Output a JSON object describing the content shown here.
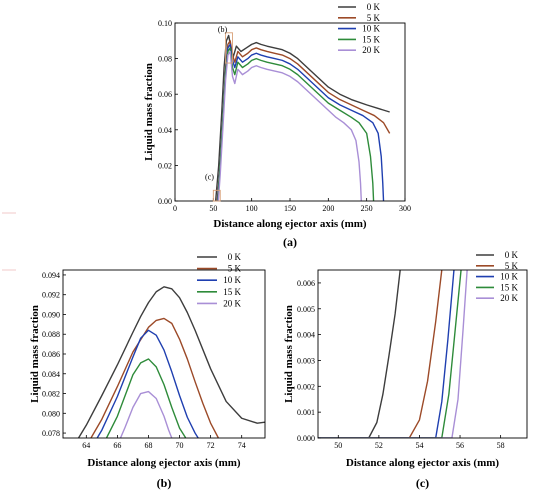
{
  "chart_data": [
    {
      "type": "line",
      "panel_label": "(a)",
      "xlabel": "Distance along ejector axis (mm)",
      "ylabel": "Liquid mass fraction",
      "xlim": [
        0,
        300
      ],
      "ylim": [
        0,
        0.1
      ],
      "x_ticks": [
        "0",
        "50",
        "100",
        "150",
        "200",
        "250",
        "300"
      ],
      "y_ticks": [
        "0.00",
        "0.02",
        "0.04",
        "0.06",
        "0.08",
        "0.10"
      ],
      "annotations": [
        "(b)",
        "(c)"
      ],
      "legend_position": "top-right",
      "series": [
        {
          "name": "0 K",
          "color": "#3d3d3d",
          "x": [
            53,
            57,
            61,
            64,
            67,
            70,
            73,
            76,
            80,
            86,
            93,
            100,
            106,
            112,
            120,
            130,
            140,
            150,
            160,
            170,
            180,
            190,
            200,
            215,
            230,
            250,
            265,
            280
          ],
          "y": [
            0,
            0.02,
            0.05,
            0.075,
            0.09,
            0.093,
            0.086,
            0.081,
            0.087,
            0.084,
            0.086,
            0.088,
            0.089,
            0.088,
            0.087,
            0.086,
            0.085,
            0.083,
            0.08,
            0.076,
            0.072,
            0.068,
            0.064,
            0.06,
            0.057,
            0.054,
            0.052,
            0.05
          ]
        },
        {
          "name": "5 K",
          "color": "#9c4a28",
          "x": [
            55,
            59,
            63,
            66,
            69,
            72,
            75,
            78,
            82,
            88,
            95,
            100,
            106,
            112,
            120,
            130,
            140,
            150,
            160,
            170,
            180,
            190,
            200,
            215,
            230,
            245,
            260,
            272,
            280
          ],
          "y": [
            0,
            0.02,
            0.05,
            0.075,
            0.088,
            0.09,
            0.082,
            0.078,
            0.084,
            0.081,
            0.083,
            0.085,
            0.086,
            0.085,
            0.084,
            0.083,
            0.082,
            0.08,
            0.077,
            0.073,
            0.069,
            0.065,
            0.061,
            0.057,
            0.054,
            0.051,
            0.048,
            0.044,
            0.038
          ]
        },
        {
          "name": "10 K",
          "color": "#1f3fb0",
          "x": [
            55.5,
            59,
            63,
            66,
            69,
            72,
            75,
            78,
            82,
            88,
            95,
            100,
            106,
            112,
            120,
            130,
            140,
            150,
            160,
            170,
            180,
            190,
            200,
            215,
            230,
            245,
            258,
            265,
            269,
            271,
            272
          ],
          "y": [
            0,
            0.02,
            0.05,
            0.073,
            0.086,
            0.088,
            0.079,
            0.075,
            0.081,
            0.078,
            0.08,
            0.082,
            0.083,
            0.082,
            0.081,
            0.08,
            0.079,
            0.077,
            0.074,
            0.07,
            0.066,
            0.062,
            0.058,
            0.054,
            0.051,
            0.048,
            0.044,
            0.038,
            0.025,
            0.01,
            0
          ]
        },
        {
          "name": "15 K",
          "color": "#2e8b3a",
          "x": [
            56,
            59,
            63,
            66,
            69,
            72,
            75,
            78,
            82,
            88,
            95,
            100,
            106,
            112,
            120,
            130,
            140,
            150,
            160,
            170,
            180,
            190,
            200,
            215,
            230,
            240,
            250,
            255,
            258,
            259
          ],
          "y": [
            0,
            0.02,
            0.05,
            0.072,
            0.084,
            0.086,
            0.075,
            0.071,
            0.078,
            0.075,
            0.077,
            0.079,
            0.08,
            0.079,
            0.078,
            0.077,
            0.076,
            0.074,
            0.071,
            0.067,
            0.063,
            0.059,
            0.055,
            0.051,
            0.047,
            0.044,
            0.038,
            0.025,
            0.01,
            0
          ]
        },
        {
          "name": "20 K",
          "color": "#a98fd6",
          "x": [
            56.5,
            59,
            63,
            66,
            69,
            72,
            75,
            78,
            82,
            88,
            95,
            100,
            106,
            112,
            120,
            130,
            140,
            150,
            160,
            170,
            180,
            190,
            200,
            210,
            220,
            230,
            236,
            240,
            242,
            243
          ],
          "y": [
            0,
            0.015,
            0.045,
            0.068,
            0.082,
            0.084,
            0.07,
            0.066,
            0.074,
            0.071,
            0.073,
            0.075,
            0.076,
            0.075,
            0.074,
            0.073,
            0.072,
            0.07,
            0.067,
            0.063,
            0.059,
            0.055,
            0.051,
            0.047,
            0.044,
            0.04,
            0.034,
            0.022,
            0.01,
            0
          ]
        }
      ]
    },
    {
      "type": "line",
      "panel_label": "(b)",
      "xlabel": "Distance along ejector axis (mm)",
      "ylabel": "Liquid mass fraction",
      "xlim": [
        62.5,
        75.5
      ],
      "ylim": [
        0.0775,
        0.0945
      ],
      "x_ticks": [
        "64",
        "66",
        "68",
        "70",
        "72",
        "74"
      ],
      "y_ticks": [
        "0.078",
        "0.080",
        "0.082",
        "0.084",
        "0.086",
        "0.088",
        "0.090",
        "0.092",
        "0.094"
      ],
      "legend_position": "top-right",
      "series": [
        {
          "name": "0 K",
          "color": "#3d3d3d",
          "x": [
            63.5,
            64,
            65,
            66,
            67,
            67.5,
            68,
            68.5,
            69,
            69.5,
            70,
            70.5,
            71,
            72,
            73,
            74,
            75,
            75.5
          ],
          "y": [
            0.0775,
            0.0788,
            0.0818,
            0.0849,
            0.0882,
            0.0898,
            0.0912,
            0.0923,
            0.0928,
            0.0926,
            0.0917,
            0.0902,
            0.0884,
            0.0845,
            0.0812,
            0.0795,
            0.079,
            0.0791
          ]
        },
        {
          "name": "5 K",
          "color": "#9c4a28",
          "x": [
            64.3,
            65,
            66,
            67,
            68,
            68.5,
            69,
            69.5,
            70,
            70.5,
            71,
            71.5,
            72,
            72.5
          ],
          "y": [
            0.0775,
            0.0794,
            0.0827,
            0.0862,
            0.0887,
            0.0894,
            0.0896,
            0.0891,
            0.0875,
            0.0855,
            0.0832,
            0.081,
            0.079,
            0.0775
          ]
        },
        {
          "name": "10 K",
          "color": "#1f3fb0",
          "x": [
            64.7,
            65,
            66,
            67,
            67.5,
            68,
            68.5,
            69,
            69.5,
            70,
            70.5,
            71,
            71.2
          ],
          "y": [
            0.0775,
            0.0783,
            0.0817,
            0.0857,
            0.0876,
            0.0884,
            0.0879,
            0.0864,
            0.0842,
            0.0818,
            0.0796,
            0.078,
            0.0775
          ]
        },
        {
          "name": "15 K",
          "color": "#2e8b3a",
          "x": [
            65.3,
            66,
            66.5,
            67,
            67.5,
            68,
            68.5,
            69,
            69.5,
            70,
            70.4
          ],
          "y": [
            0.0775,
            0.0797,
            0.0818,
            0.0839,
            0.0851,
            0.0855,
            0.0847,
            0.0829,
            0.0806,
            0.0785,
            0.0775
          ]
        },
        {
          "name": "20 K",
          "color": "#a98fd6",
          "x": [
            66.2,
            66.5,
            67,
            67.5,
            68,
            68.5,
            69,
            69.3,
            69.5
          ],
          "y": [
            0.0775,
            0.0786,
            0.0806,
            0.082,
            0.0822,
            0.0815,
            0.0797,
            0.0783,
            0.0775
          ]
        }
      ]
    },
    {
      "type": "line",
      "panel_label": "(c)",
      "xlabel": "Distance along ejector axis (mm)",
      "ylabel": "Liquid mass fraction",
      "xlim": [
        49,
        59.3
      ],
      "ylim": [
        0,
        0.0065
      ],
      "x_ticks": [
        "50",
        "52",
        "54",
        "56",
        "58"
      ],
      "y_ticks": [
        "0.000",
        "0.001",
        "0.002",
        "0.003",
        "0.004",
        "0.005",
        "0.006"
      ],
      "legend_position": "top-right",
      "series": [
        {
          "name": "0 K",
          "color": "#3d3d3d",
          "x": [
            49,
            51.5,
            51.9,
            52.2,
            52.5,
            52.8,
            53.05
          ],
          "y": [
            0,
            0,
            0.0006,
            0.0017,
            0.0032,
            0.0048,
            0.0065
          ]
        },
        {
          "name": "5 K",
          "color": "#9c4a28",
          "x": [
            49,
            53.5,
            54,
            54.4,
            54.8,
            55.1
          ],
          "y": [
            0,
            0,
            0.0007,
            0.0022,
            0.0045,
            0.0065
          ]
        },
        {
          "name": "10 K",
          "color": "#1f3fb0",
          "x": [
            49,
            54.8,
            55.1,
            55.4,
            55.7
          ],
          "y": [
            0,
            0,
            0.0014,
            0.0038,
            0.0065
          ]
        },
        {
          "name": "15 K",
          "color": "#2e8b3a",
          "x": [
            49,
            55.1,
            55.45,
            55.75,
            56.05
          ],
          "y": [
            0,
            0,
            0.0017,
            0.0041,
            0.0065
          ]
        },
        {
          "name": "20 K",
          "color": "#a98fd6",
          "x": [
            49,
            55.6,
            55.9,
            56.15,
            56.35
          ],
          "y": [
            0,
            0,
            0.0015,
            0.0042,
            0.0065
          ]
        }
      ]
    }
  ]
}
